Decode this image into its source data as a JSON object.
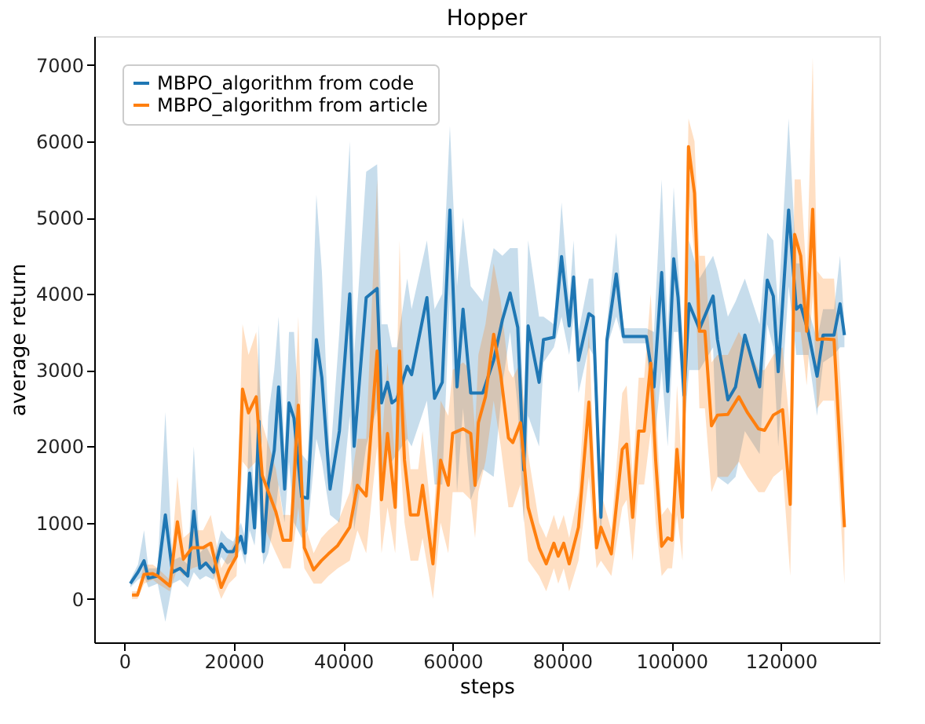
{
  "chart_data": {
    "type": "line",
    "title": "Hopper",
    "xlabel": "steps",
    "ylabel": "average return",
    "xlim": [
      -5500,
      138000
    ],
    "xticks": [
      0,
      20000,
      40000,
      60000,
      80000,
      100000,
      120000
    ],
    "ylim": [
      -570,
      7380
    ],
    "yticks": [
      0,
      1000,
      2000,
      3000,
      4000,
      5000,
      6000,
      7000
    ],
    "grid": false,
    "legend": "top left",
    "marker": "none",
    "line_style": "solid",
    "series": [
      {
        "name": "MBPO_algorithm from code",
        "color": "#1f77b4",
        "x": [
          1100,
          2500,
          3600,
          4400,
          6100,
          7500,
          8800,
          10200,
          11600,
          12700,
          13800,
          14900,
          16300,
          17700,
          18800,
          19900,
          21300,
          22100,
          22900,
          23800,
          24600,
          25400,
          26300,
          27400,
          28200,
          29300,
          30100,
          31000,
          32400,
          33500,
          35100,
          36100,
          37600,
          39300,
          41200,
          42000,
          44200,
          46200,
          47000,
          48100,
          48900,
          49800,
          51700,
          52500,
          55300,
          56700,
          58100,
          59500,
          60800,
          61900,
          63300,
          65500,
          67500,
          69100,
          70500,
          71900,
          73000,
          73800,
          75800,
          76600,
          78500,
          79900,
          81300,
          82100,
          83000,
          84900,
          85700,
          87100,
          88200,
          89900,
          91200,
          95400,
          96800,
          98200,
          99300,
          100400,
          101200,
          102300,
          103200,
          105100,
          107600,
          108400,
          110300,
          111700,
          113400,
          116100,
          117500,
          118600,
          119500,
          121400,
          122800,
          123600,
          125000,
          126600,
          127700,
          129700,
          130800,
          131600
        ],
        "values": [
          200,
          350,
          500,
          270,
          300,
          1100,
          350,
          400,
          300,
          1150,
          400,
          470,
          350,
          720,
          620,
          620,
          820,
          600,
          1650,
          930,
          2330,
          620,
          1500,
          1950,
          2780,
          1440,
          2570,
          2370,
          1340,
          1320,
          3400,
          2900,
          1440,
          2200,
          4000,
          2000,
          3950,
          4070,
          2570,
          2840,
          2570,
          2620,
          3050,
          2940,
          3950,
          2630,
          2840,
          5100,
          2780,
          3800,
          2700,
          2700,
          3130,
          3660,
          4010,
          3560,
          1690,
          3580,
          2840,
          3400,
          3430,
          4490,
          3580,
          4220,
          3130,
          3740,
          3700,
          1070,
          3400,
          4260,
          3440,
          3440,
          2780,
          4280,
          2720,
          4460,
          3950,
          2670,
          3870,
          3540,
          3970,
          3400,
          2610,
          2780,
          3460,
          2780,
          4180,
          3970,
          2980,
          5100,
          3800,
          3850,
          3500,
          2920,
          3460,
          3460,
          3870,
          3460
        ],
        "lower": [
          150,
          250,
          300,
          150,
          200,
          -300,
          200,
          250,
          150,
          350,
          250,
          300,
          250,
          550,
          450,
          500,
          650,
          450,
          900,
          700,
          1300,
          450,
          600,
          1000,
          1500,
          1000,
          1800,
          1000,
          800,
          900,
          2100,
          1800,
          1100,
          1000,
          2400,
          900,
          2000,
          2500,
          1600,
          2000,
          1800,
          1900,
          2100,
          2000,
          2600,
          1500,
          1500,
          4000,
          1400,
          2500,
          1300,
          1700,
          1600,
          2800,
          3500,
          2500,
          1000,
          2400,
          2000,
          3100,
          3300,
          3700,
          3200,
          3700,
          2700,
          3300,
          3200,
          700,
          3300,
          3700,
          3350,
          3350,
          2000,
          3000,
          2000,
          3500,
          3500,
          2200,
          3000,
          3000,
          3300,
          1600,
          1500,
          1600,
          2200,
          1900,
          3600,
          3300,
          2000,
          4100,
          3200,
          3200,
          3200,
          2400,
          3100,
          3200,
          3300,
          3300
        ],
        "upper": [
          250,
          450,
          900,
          400,
          400,
          2450,
          500,
          550,
          450,
          2000,
          600,
          700,
          500,
          900,
          800,
          750,
          1000,
          800,
          2500,
          1200,
          3600,
          800,
          2400,
          3000,
          3700,
          1900,
          3500,
          3500,
          1900,
          1800,
          5300,
          4300,
          1800,
          3500,
          6000,
          3200,
          5600,
          5700,
          3600,
          3600,
          3300,
          3300,
          4200,
          3800,
          4700,
          3800,
          4000,
          6200,
          4100,
          5000,
          4100,
          3900,
          4600,
          4500,
          4600,
          4600,
          2400,
          4700,
          3700,
          3700,
          3600,
          5200,
          3900,
          4700,
          3500,
          4200,
          4200,
          1500,
          3600,
          4800,
          3550,
          3550,
          3500,
          5500,
          3500,
          5400,
          4400,
          3200,
          4700,
          4200,
          4500,
          4300,
          3700,
          3900,
          4200,
          3600,
          4800,
          4700,
          3800,
          6300,
          4400,
          4400,
          3800,
          3400,
          3800,
          3800,
          4500,
          3600
        ]
      },
      {
        "name": "MBPO_algorithm from article",
        "color": "#ff7f0e",
        "x": [
          1400,
          2400,
          3600,
          5200,
          6100,
          8300,
          9700,
          10800,
          12400,
          14400,
          15800,
          17700,
          19100,
          20500,
          21600,
          22700,
          24100,
          25200,
          27700,
          29000,
          30400,
          31800,
          32900,
          34600,
          36000,
          37300,
          39000,
          41200,
          42600,
          44200,
          46200,
          47000,
          48100,
          49500,
          50300,
          51200,
          52300,
          53700,
          54500,
          56400,
          57800,
          59200,
          60000,
          61900,
          63300,
          64100,
          64700,
          66000,
          67500,
          68800,
          70200,
          71000,
          72400,
          73800,
          75800,
          77100,
          78500,
          79300,
          80300,
          81300,
          83000,
          84900,
          86300,
          87100,
          89000,
          91000,
          91800,
          92900,
          94000,
          95000,
          96200,
          97100,
          98200,
          99300,
          100100,
          101000,
          102000,
          103100,
          104200,
          105100,
          106100,
          107300,
          108400,
          110300,
          112300,
          113900,
          115900,
          117000,
          118600,
          120300,
          121700,
          122500,
          123600,
          124700,
          125800,
          126600,
          127700,
          129700,
          131600
        ],
        "values": [
          50,
          50,
          320,
          330,
          300,
          170,
          1010,
          520,
          670,
          670,
          730,
          150,
          380,
          560,
          2750,
          2440,
          2650,
          1620,
          1140,
          770,
          770,
          2540,
          670,
          380,
          500,
          590,
          700,
          940,
          1490,
          1350,
          3250,
          1300,
          2170,
          1200,
          3250,
          1820,
          1100,
          1100,
          1490,
          460,
          1820,
          1490,
          2170,
          2230,
          2170,
          1490,
          2310,
          2650,
          3470,
          2930,
          2110,
          2050,
          2310,
          1200,
          670,
          460,
          730,
          560,
          730,
          460,
          940,
          2580,
          670,
          940,
          590,
          1960,
          2030,
          1070,
          2200,
          2200,
          3090,
          1820,
          690,
          800,
          770,
          1960,
          1070,
          5930,
          5320,
          3510,
          3510,
          2270,
          2410,
          2420,
          2650,
          2440,
          2230,
          2210,
          2410,
          2480,
          1240,
          4780,
          4500,
          3510,
          5110,
          3400,
          3410,
          3400,
          940
        ],
        "lower": [
          0,
          0,
          200,
          250,
          200,
          100,
          400,
          300,
          400,
          450,
          400,
          0,
          200,
          300,
          1800,
          1700,
          1800,
          1000,
          600,
          400,
          400,
          1200,
          400,
          200,
          200,
          300,
          400,
          500,
          900,
          600,
          2000,
          600,
          1200,
          600,
          2000,
          1000,
          500,
          500,
          800,
          0,
          1000,
          600,
          1400,
          1400,
          1300,
          800,
          1400,
          1800,
          2600,
          2000,
          1200,
          1200,
          1500,
          500,
          300,
          100,
          400,
          200,
          400,
          100,
          500,
          1600,
          400,
          500,
          300,
          1200,
          1300,
          500,
          1500,
          1500,
          2200,
          1000,
          300,
          400,
          400,
          1100,
          500,
          5300,
          4500,
          2500,
          2500,
          1400,
          1600,
          1600,
          1800,
          1600,
          1400,
          1400,
          1600,
          1700,
          300,
          3500,
          3500,
          2800,
          4000,
          2500,
          2600,
          2600,
          200
        ],
        "upper": [
          100,
          100,
          450,
          450,
          400,
          250,
          1600,
          800,
          900,
          900,
          1100,
          400,
          600,
          800,
          3600,
          3200,
          3500,
          2300,
          1700,
          1100,
          1100,
          3700,
          1000,
          600,
          800,
          900,
          1000,
          1400,
          2100,
          2100,
          5500,
          2000,
          3100,
          1800,
          4700,
          2600,
          1700,
          1700,
          2200,
          900,
          2600,
          2400,
          3000,
          3100,
          3000,
          2200,
          3200,
          3600,
          4400,
          3900,
          3000,
          2900,
          3100,
          1900,
          1000,
          800,
          1100,
          900,
          1100,
          800,
          1400,
          3500,
          1000,
          1400,
          900,
          2700,
          2800,
          1600,
          2900,
          2900,
          4000,
          2600,
          1100,
          1200,
          1100,
          2800,
          1600,
          6300,
          6000,
          4500,
          4500,
          3100,
          3200,
          3200,
          3500,
          3300,
          3000,
          3000,
          3200,
          3300,
          2200,
          5500,
          5500,
          4200,
          7100,
          4300,
          4200,
          4200,
          2000
        ]
      }
    ]
  }
}
